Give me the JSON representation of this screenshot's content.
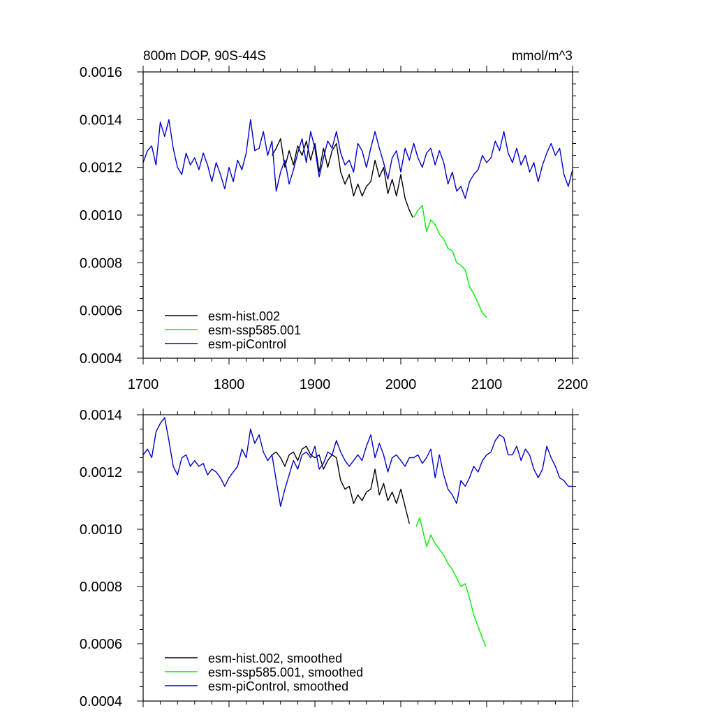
{
  "chart_data": [
    {
      "type": "line",
      "title": "800m DOP, 90S-44S",
      "units": "mmol/m^3",
      "xlim": [
        1700,
        2200
      ],
      "x_ticks": [
        "1700",
        "1800",
        "1900",
        "2000",
        "2100",
        "2200"
      ],
      "ylim": [
        0.0004,
        0.0016
      ],
      "y_ticks": [
        "0.0016",
        "0.0014",
        "0.0012",
        "0.0010",
        "0.0008",
        "0.0006",
        "0.0004"
      ],
      "legend_position": "bottom-left",
      "grid": false,
      "series": [
        {
          "name": "esm-hist.002",
          "color": "#000000",
          "x": [
            1850,
            1855,
            1860,
            1865,
            1870,
            1875,
            1880,
            1885,
            1890,
            1895,
            1900,
            1905,
            1910,
            1915,
            1920,
            1925,
            1930,
            1935,
            1940,
            1945,
            1950,
            1955,
            1960,
            1965,
            1970,
            1975,
            1980,
            1985,
            1990,
            1995,
            2000,
            2005,
            2010,
            2014
          ],
          "y": [
            0.00125,
            0.00128,
            0.00132,
            0.0012,
            0.00127,
            0.00121,
            0.00129,
            0.00125,
            0.00131,
            0.00123,
            0.0013,
            0.00118,
            0.00128,
            0.0012,
            0.00127,
            0.0013,
            0.00118,
            0.00113,
            0.00117,
            0.00108,
            0.00113,
            0.00108,
            0.00112,
            0.00114,
            0.00123,
            0.00116,
            0.0012,
            0.00109,
            0.00115,
            0.00108,
            0.00117,
            0.00107,
            0.00102,
            0.00099
          ]
        },
        {
          "name": "esm-ssp585.001",
          "color": "#00ee00",
          "x": [
            2015,
            2020,
            2025,
            2030,
            2035,
            2040,
            2045,
            2050,
            2055,
            2060,
            2065,
            2070,
            2075,
            2080,
            2085,
            2090,
            2095,
            2100
          ],
          "y": [
            0.00099,
            0.00102,
            0.00104,
            0.00093,
            0.00098,
            0.00096,
            0.00092,
            0.0009,
            0.00086,
            0.00085,
            0.0008,
            0.00079,
            0.00077,
            0.0007,
            0.00067,
            0.00063,
            0.00059,
            0.00057
          ]
        },
        {
          "name": "esm-piControl",
          "color": "#0000cc",
          "x": [
            1700,
            1705,
            1710,
            1715,
            1720,
            1725,
            1730,
            1735,
            1740,
            1745,
            1750,
            1755,
            1760,
            1765,
            1770,
            1775,
            1780,
            1785,
            1790,
            1795,
            1800,
            1805,
            1810,
            1815,
            1820,
            1825,
            1830,
            1835,
            1840,
            1845,
            1850,
            1855,
            1860,
            1865,
            1870,
            1875,
            1880,
            1885,
            1890,
            1895,
            1900,
            1905,
            1910,
            1915,
            1920,
            1925,
            1930,
            1935,
            1940,
            1945,
            1950,
            1955,
            1960,
            1965,
            1970,
            1975,
            1980,
            1985,
            1990,
            1995,
            2000,
            2005,
            2010,
            2015,
            2020,
            2025,
            2030,
            2035,
            2040,
            2045,
            2050,
            2055,
            2060,
            2065,
            2070,
            2075,
            2080,
            2085,
            2090,
            2095,
            2100,
            2105,
            2110,
            2115,
            2120,
            2125,
            2130,
            2135,
            2140,
            2145,
            2150,
            2155,
            2160,
            2165,
            2170,
            2175,
            2180,
            2185,
            2190,
            2195,
            2200
          ],
          "y": [
            0.00122,
            0.00127,
            0.00129,
            0.00121,
            0.00139,
            0.00133,
            0.0014,
            0.00128,
            0.0012,
            0.00117,
            0.00126,
            0.00121,
            0.00124,
            0.00119,
            0.00126,
            0.00121,
            0.00114,
            0.00122,
            0.00117,
            0.00111,
            0.0012,
            0.00114,
            0.00123,
            0.00119,
            0.00126,
            0.0014,
            0.00127,
            0.00128,
            0.00135,
            0.00125,
            0.00131,
            0.0011,
            0.00118,
            0.00123,
            0.00113,
            0.00119,
            0.00126,
            0.00132,
            0.00122,
            0.00135,
            0.00128,
            0.00116,
            0.00124,
            0.00131,
            0.00128,
            0.00135,
            0.00126,
            0.00121,
            0.00123,
            0.00118,
            0.0013,
            0.00127,
            0.0012,
            0.00128,
            0.00135,
            0.00128,
            0.00122,
            0.00115,
            0.00124,
            0.00127,
            0.00118,
            0.00128,
            0.00123,
            0.0013,
            0.00124,
            0.0012,
            0.00126,
            0.00128,
            0.00121,
            0.00127,
            0.00122,
            0.00113,
            0.00118,
            0.0011,
            0.00112,
            0.00107,
            0.00114,
            0.00117,
            0.00119,
            0.00125,
            0.00122,
            0.00124,
            0.00131,
            0.00127,
            0.00135,
            0.00126,
            0.00122,
            0.00128,
            0.00121,
            0.00125,
            0.00118,
            0.00122,
            0.00114,
            0.00121,
            0.00126,
            0.0013,
            0.00125,
            0.00128,
            0.00117,
            0.00112,
            0.00119
          ]
        }
      ]
    },
    {
      "type": "line",
      "title": "",
      "units": "",
      "xlim": [
        1700,
        2200
      ],
      "x_ticks": [],
      "ylim": [
        0.0004,
        0.0014
      ],
      "y_ticks": [
        "0.0014",
        "0.0012",
        "0.0010",
        "0.0008",
        "0.0006",
        "0.0004"
      ],
      "legend_position": "bottom-left",
      "grid": false,
      "series": [
        {
          "name": "esm-hist.002, smoothed",
          "color": "#000000",
          "x": [
            1850,
            1855,
            1860,
            1865,
            1870,
            1875,
            1880,
            1885,
            1890,
            1895,
            1900,
            1905,
            1910,
            1915,
            1920,
            1925,
            1930,
            1935,
            1940,
            1945,
            1950,
            1955,
            1960,
            1965,
            1970,
            1975,
            1980,
            1985,
            1990,
            1995,
            2000,
            2005,
            2010
          ],
          "y": [
            0.00126,
            0.00127,
            0.00125,
            0.00122,
            0.00126,
            0.00127,
            0.00124,
            0.00128,
            0.00129,
            0.00126,
            0.00125,
            0.00126,
            0.00121,
            0.00124,
            0.00126,
            0.00125,
            0.00117,
            0.00114,
            0.00115,
            0.00109,
            0.00112,
            0.0011,
            0.00113,
            0.00114,
            0.00121,
            0.00112,
            0.00116,
            0.0011,
            0.00113,
            0.00109,
            0.00114,
            0.00108,
            0.00102
          ]
        },
        {
          "name": "esm-ssp585.001, smoothed",
          "color": "#00ee00",
          "x": [
            2018,
            2022,
            2026,
            2030,
            2035,
            2040,
            2045,
            2050,
            2055,
            2060,
            2065,
            2070,
            2075,
            2080,
            2085,
            2090,
            2095,
            2099
          ],
          "y": [
            0.00101,
            0.00104,
            0.00099,
            0.00094,
            0.00098,
            0.00095,
            0.00093,
            0.00091,
            0.00088,
            0.00086,
            0.00083,
            0.0008,
            0.00081,
            0.00076,
            0.0007,
            0.00066,
            0.00062,
            0.00059
          ]
        },
        {
          "name": "esm-piControl, smoothed",
          "color": "#0000cc",
          "x": [
            1700,
            1705,
            1710,
            1715,
            1720,
            1725,
            1730,
            1735,
            1740,
            1745,
            1750,
            1755,
            1760,
            1765,
            1770,
            1775,
            1780,
            1785,
            1790,
            1795,
            1800,
            1805,
            1810,
            1815,
            1820,
            1825,
            1830,
            1835,
            1840,
            1845,
            1850,
            1855,
            1860,
            1865,
            1870,
            1875,
            1880,
            1885,
            1890,
            1895,
            1900,
            1905,
            1910,
            1915,
            1920,
            1925,
            1930,
            1935,
            1940,
            1945,
            1950,
            1955,
            1960,
            1965,
            1970,
            1975,
            1980,
            1985,
            1990,
            1995,
            2000,
            2005,
            2010,
            2015,
            2020,
            2025,
            2030,
            2035,
            2040,
            2045,
            2050,
            2055,
            2060,
            2065,
            2070,
            2075,
            2080,
            2085,
            2090,
            2095,
            2100,
            2105,
            2110,
            2115,
            2120,
            2125,
            2130,
            2135,
            2140,
            2145,
            2150,
            2155,
            2160,
            2165,
            2170,
            2175,
            2180,
            2185,
            2190,
            2195,
            2200
          ],
          "y": [
            0.00126,
            0.00128,
            0.00125,
            0.00134,
            0.00137,
            0.00139,
            0.00131,
            0.00122,
            0.00119,
            0.00125,
            0.00126,
            0.00122,
            0.00124,
            0.00122,
            0.00123,
            0.00119,
            0.00121,
            0.0012,
            0.00118,
            0.00115,
            0.00118,
            0.0012,
            0.00122,
            0.00128,
            0.00125,
            0.00135,
            0.0013,
            0.00133,
            0.00127,
            0.00124,
            0.00126,
            0.00117,
            0.00108,
            0.00114,
            0.00119,
            0.00124,
            0.00121,
            0.00126,
            0.00127,
            0.00125,
            0.00129,
            0.00121,
            0.00123,
            0.00127,
            0.00126,
            0.00131,
            0.00127,
            0.00124,
            0.00122,
            0.00124,
            0.00126,
            0.00124,
            0.00129,
            0.00133,
            0.00125,
            0.0013,
            0.00126,
            0.0012,
            0.00125,
            0.00126,
            0.00124,
            0.00122,
            0.00125,
            0.00125,
            0.00126,
            0.00123,
            0.00125,
            0.00128,
            0.00118,
            0.00126,
            0.00119,
            0.00114,
            0.00112,
            0.00109,
            0.00117,
            0.00115,
            0.00118,
            0.00122,
            0.0012,
            0.00124,
            0.00126,
            0.00127,
            0.00131,
            0.00133,
            0.00132,
            0.00126,
            0.00126,
            0.00129,
            0.00124,
            0.00128,
            0.00126,
            0.00121,
            0.00118,
            0.00121,
            0.00129,
            0.00125,
            0.00122,
            0.00118,
            0.00117,
            0.00115,
            0.00115
          ]
        }
      ]
    }
  ]
}
